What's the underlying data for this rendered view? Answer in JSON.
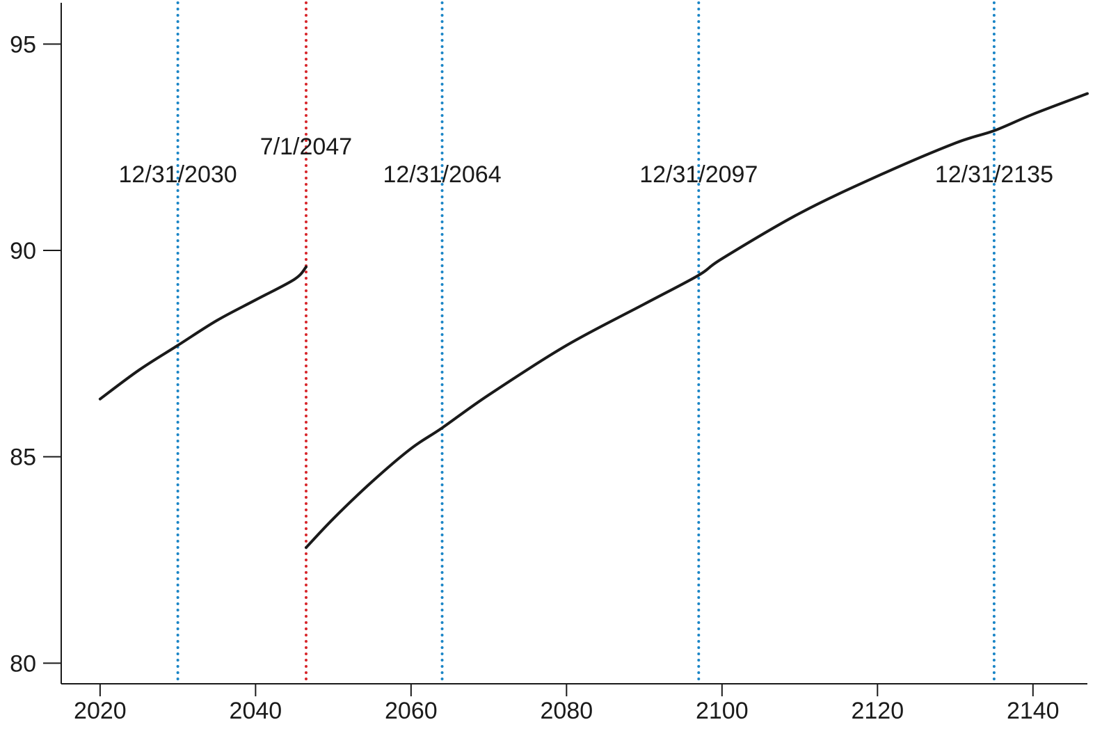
{
  "chart_data": {
    "type": "line",
    "title": "",
    "xlabel": "",
    "ylabel": "",
    "xlim": [
      2015,
      2147
    ],
    "ylim": [
      79.5,
      96
    ],
    "x_ticks": [
      2020,
      2040,
      2060,
      2080,
      2100,
      2120,
      2140
    ],
    "y_ticks": [
      80,
      85,
      90,
      95
    ],
    "grid": false,
    "legend": "none",
    "line_color": "#1a1a1a",
    "series": [
      {
        "segment": 1,
        "x": [
          2020,
          2025,
          2030,
          2035,
          2040,
          2045,
          2046.5
        ],
        "y": [
          86.4,
          87.1,
          87.7,
          88.3,
          88.8,
          89.3,
          89.6
        ]
      },
      {
        "segment": 2,
        "x": [
          2046.5,
          2050,
          2055,
          2060,
          2064,
          2070,
          2080,
          2090,
          2097,
          2100,
          2110,
          2120,
          2130,
          2135,
          2140,
          2147
        ],
        "y": [
          82.8,
          83.5,
          84.4,
          85.2,
          85.7,
          86.5,
          87.7,
          88.7,
          89.4,
          89.8,
          90.9,
          91.8,
          92.6,
          92.9,
          93.3,
          93.8
        ]
      }
    ],
    "annotations": [
      {
        "label": "12/31/2030",
        "x": 2030.0,
        "color": "#1a85c6"
      },
      {
        "label": "7/1/2047",
        "x": 2046.5,
        "color": "#d7262b"
      },
      {
        "label": "12/31/2064",
        "x": 2064.0,
        "color": "#1a85c6"
      },
      {
        "label": "12/31/2097",
        "x": 2097.0,
        "color": "#1a85c6"
      },
      {
        "label": "12/31/2135",
        "x": 2135.0,
        "color": "#1a85c6"
      }
    ]
  }
}
